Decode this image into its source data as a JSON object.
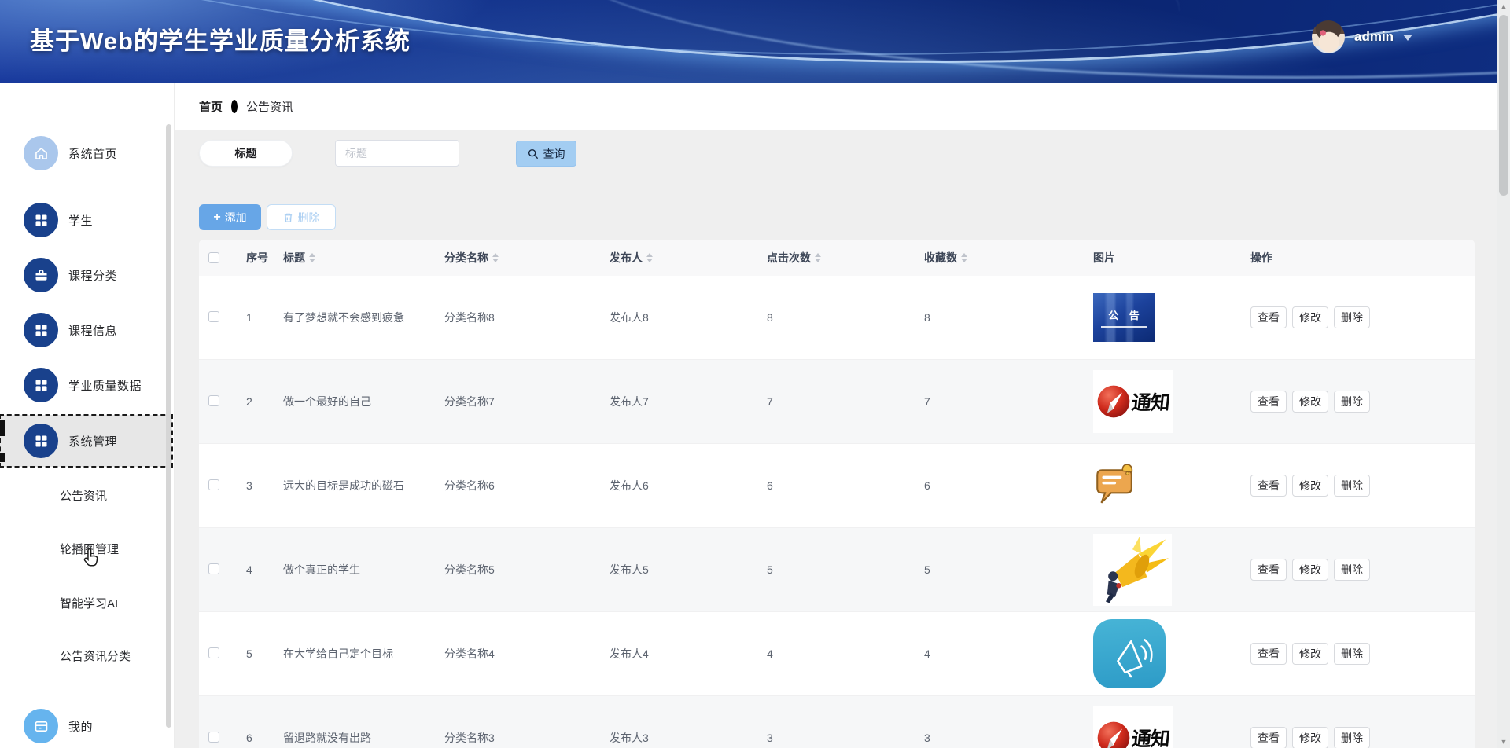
{
  "header": {
    "title": "基于Web的学生学业质量分析系统",
    "user": {
      "name": "admin"
    }
  },
  "sidebar": {
    "items": [
      {
        "label": "系统首页",
        "icon": "home-icon"
      },
      {
        "label": "学生",
        "icon": "grid-icon"
      },
      {
        "label": "课程分类",
        "icon": "briefcase-icon"
      },
      {
        "label": "课程信息",
        "icon": "grid-icon"
      },
      {
        "label": "学业质量数据",
        "icon": "grid-icon"
      },
      {
        "label": "系统管理",
        "icon": "grid-icon",
        "selected": true
      }
    ],
    "submenu": [
      {
        "label": "公告资讯"
      },
      {
        "label": "轮播图管理"
      },
      {
        "label": "智能学习AI"
      },
      {
        "label": "公告资讯分类"
      }
    ],
    "mine": {
      "label": "我的",
      "icon": "wallet-icon"
    }
  },
  "breadcrumb": {
    "home": "首页",
    "current": "公告资讯"
  },
  "toolbar": {
    "filter_label": "标题",
    "search_placeholder": "标题",
    "search_value": "",
    "query_label": "查询",
    "add_label": "添加",
    "delete_label": "删除"
  },
  "table": {
    "columns": [
      "序号",
      "标题",
      "分类名称",
      "发布人",
      "点击次数",
      "收藏数",
      "图片",
      "操作"
    ],
    "sortable_columns": [
      "标题",
      "分类名称",
      "发布人",
      "点击次数",
      "收藏数"
    ],
    "actions": [
      "查看",
      "修改",
      "删除"
    ],
    "rows": [
      {
        "no": "1",
        "title": "有了梦想就不会感到疲惫",
        "category": "分类名称8",
        "publisher": "发布人8",
        "clicks": "8",
        "favorites": "8",
        "image": "banner-blue",
        "image_text": "公 告"
      },
      {
        "no": "2",
        "title": "做一个最好的自己",
        "category": "分类名称7",
        "publisher": "发布人7",
        "clicks": "7",
        "favorites": "7",
        "image": "notice-red",
        "image_text": "通知"
      },
      {
        "no": "3",
        "title": "远大的目标是成功的磁石",
        "category": "分类名称6",
        "publisher": "发布人6",
        "clicks": "6",
        "favorites": "6",
        "image": "bubble-orange",
        "image_text": ""
      },
      {
        "no": "4",
        "title": "做个真正的学生",
        "category": "分类名称5",
        "publisher": "发布人5",
        "clicks": "5",
        "favorites": "5",
        "image": "megaphone-person",
        "image_text": ""
      },
      {
        "no": "5",
        "title": "在大学给自己定个目标",
        "category": "分类名称4",
        "publisher": "发布人4",
        "clicks": "4",
        "favorites": "4",
        "image": "teal-app",
        "image_text": ""
      },
      {
        "no": "6",
        "title": "留退路就没有出路",
        "category": "分类名称3",
        "publisher": "发布人3",
        "clicks": "3",
        "favorites": "3",
        "image": "notice-red",
        "image_text": "通知"
      }
    ]
  },
  "colors": {
    "header_blue": "#0e2d80",
    "accent_blue": "#67a6e7",
    "query_button_bg": "#a3cdf2",
    "delete_button_border": "#c3ddf5",
    "sidebar_icon_dark": "#19418c",
    "sidebar_icon_light": "#aac7ec",
    "sidebar_icon_mine": "#66b4ee",
    "selected_item_bg": "#e7e7e7",
    "page_bg": "#efefef",
    "table_header_bg": "#f8f8f9",
    "stripe_row_bg": "#f6f7f8"
  }
}
